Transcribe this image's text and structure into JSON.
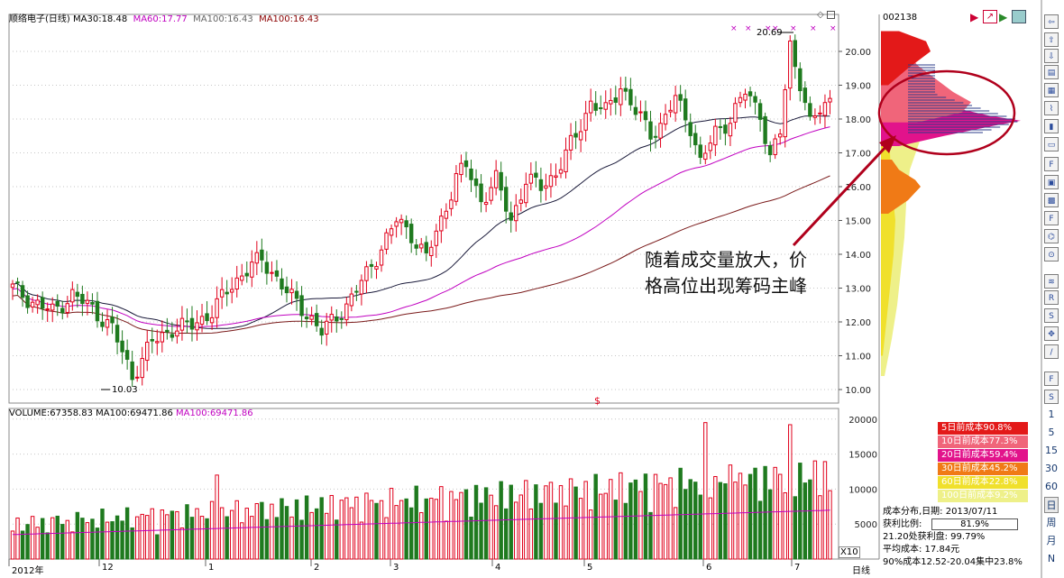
{
  "header": {
    "title": "顺络电子(日线)",
    "ma": [
      {
        "label": "MA30:",
        "value": "18.48",
        "color": "#000000"
      },
      {
        "label": "MA60:",
        "value": "17.77",
        "color": "#c000c0"
      },
      {
        "label": "MA100:",
        "value": "16.43",
        "color": "#666666"
      },
      {
        "label": "MA100:",
        "value": "16.43",
        "color": "#8b0000"
      }
    ]
  },
  "volume_header": {
    "label": "VOLUME:",
    "value": "67358.83",
    "ma100_label": "MA100:",
    "ma100_value": "69471.86",
    "ma100_2_label": "MA100:",
    "ma100_2_value": "69471.86"
  },
  "price_axis": [
    "20.00",
    "19.00",
    "18.00",
    "17.00",
    "16.00",
    "15.00",
    "14.00",
    "13.00",
    "12.00",
    "11.00",
    "10.00"
  ],
  "volume_axis": [
    "20000",
    "15000",
    "10000",
    "5000"
  ],
  "volume_multiplier": "X10",
  "time_axis": {
    "labels": [
      "2012年",
      "12",
      "1",
      "2",
      "3",
      "4",
      "5",
      "6",
      "7"
    ],
    "period": "日线"
  },
  "price_annotations": {
    "high": "20.69",
    "low": "10.03"
  },
  "annotation_text": {
    "line1": "随着成交量放大，价",
    "line2": "格高位出现筹码主峰"
  },
  "symbol": "002138",
  "cost_legend": [
    {
      "label": "5日前成本90.8%",
      "color": "#e31919"
    },
    {
      "label": "10日前成本77.3%",
      "color": "#f0657a"
    },
    {
      "label": "20日前成本59.4%",
      "color": "#e2138b"
    },
    {
      "label": "30日前成本45.2%",
      "color": "#f07a16"
    },
    {
      "label": "60日前成本22.8%",
      "color": "#f0e02c"
    },
    {
      "label": "100日前成本9.2%",
      "color": "#eef089"
    }
  ],
  "cost_info": {
    "date_line": "成本分布,日期: 2013/07/11",
    "profit_label": "获利比例:",
    "profit_value": "81.9%",
    "profit_line": "21.20处获利盘: 99.79%",
    "avg_line": "平均成本: 17.84元",
    "conc_line": "90%成本12.52-20.04集中23.8%"
  },
  "sidebar": {
    "periods": [
      "1",
      "5",
      "15",
      "30",
      "60",
      "日",
      "周",
      "月",
      "N"
    ]
  },
  "colors": {
    "up": "#e0001b",
    "down": "#1f7a1f",
    "grid": "#b0b0b0"
  },
  "chart_data": {
    "type": "candlestick",
    "title": "顺络电子(日线)",
    "ylim": [
      9.8,
      20.8
    ],
    "x_labels": [
      "2012年",
      "12",
      "1",
      "2",
      "3",
      "4",
      "5",
      "6",
      "7"
    ],
    "moving_averages": {
      "MA30": 18.48,
      "MA60": 17.77,
      "MA100": 16.43
    },
    "high": 20.69,
    "low": 10.03,
    "anchors": [
      [
        0,
        13.0
      ],
      [
        4,
        12.6
      ],
      [
        8,
        12.3
      ],
      [
        12,
        12.8
      ],
      [
        16,
        12.4
      ],
      [
        20,
        11.8
      ],
      [
        24,
        10.4
      ],
      [
        28,
        11.4
      ],
      [
        32,
        11.8
      ],
      [
        36,
        11.9
      ],
      [
        40,
        12.3
      ],
      [
        44,
        13.1
      ],
      [
        48,
        13.7
      ],
      [
        50,
        13.8
      ],
      [
        52,
        13.5
      ],
      [
        56,
        12.7
      ],
      [
        60,
        12.1
      ],
      [
        62,
        11.7
      ],
      [
        64,
        12.0
      ],
      [
        67,
        12.5
      ],
      [
        71,
        13.4
      ],
      [
        74,
        14.2
      ],
      [
        77,
        15.0
      ],
      [
        80,
        14.6
      ],
      [
        83,
        13.9
      ],
      [
        86,
        15.0
      ],
      [
        89,
        16.3
      ],
      [
        91,
        16.6
      ],
      [
        94,
        15.6
      ],
      [
        97,
        16.2
      ],
      [
        100,
        15.0
      ],
      [
        103,
        16.2
      ],
      [
        106,
        16.0
      ],
      [
        109,
        16.4
      ],
      [
        113,
        17.5
      ],
      [
        116,
        18.5
      ],
      [
        119,
        18.2
      ],
      [
        122,
        19.0
      ],
      [
        125,
        18.2
      ],
      [
        128,
        17.6
      ],
      [
        130,
        17.8
      ],
      [
        133,
        18.6
      ],
      [
        136,
        17.8
      ],
      [
        138,
        16.7
      ],
      [
        141,
        17.6
      ],
      [
        144,
        18.0
      ],
      [
        147,
        18.8
      ],
      [
        150,
        18.2
      ],
      [
        152,
        16.8
      ],
      [
        154,
        17.6
      ],
      [
        156,
        20.2
      ],
      [
        158,
        19.1
      ],
      [
        160,
        17.8
      ],
      [
        162,
        18.3
      ],
      [
        164,
        18.6
      ]
    ],
    "series": [
      {
        "name": "MA30",
        "values": []
      },
      {
        "name": "MA60",
        "values": []
      },
      {
        "name": "MA100",
        "values": []
      }
    ],
    "volume": {
      "ylim": [
        0,
        21000
      ],
      "ticks": [
        5000,
        10000,
        15000,
        20000
      ]
    }
  }
}
